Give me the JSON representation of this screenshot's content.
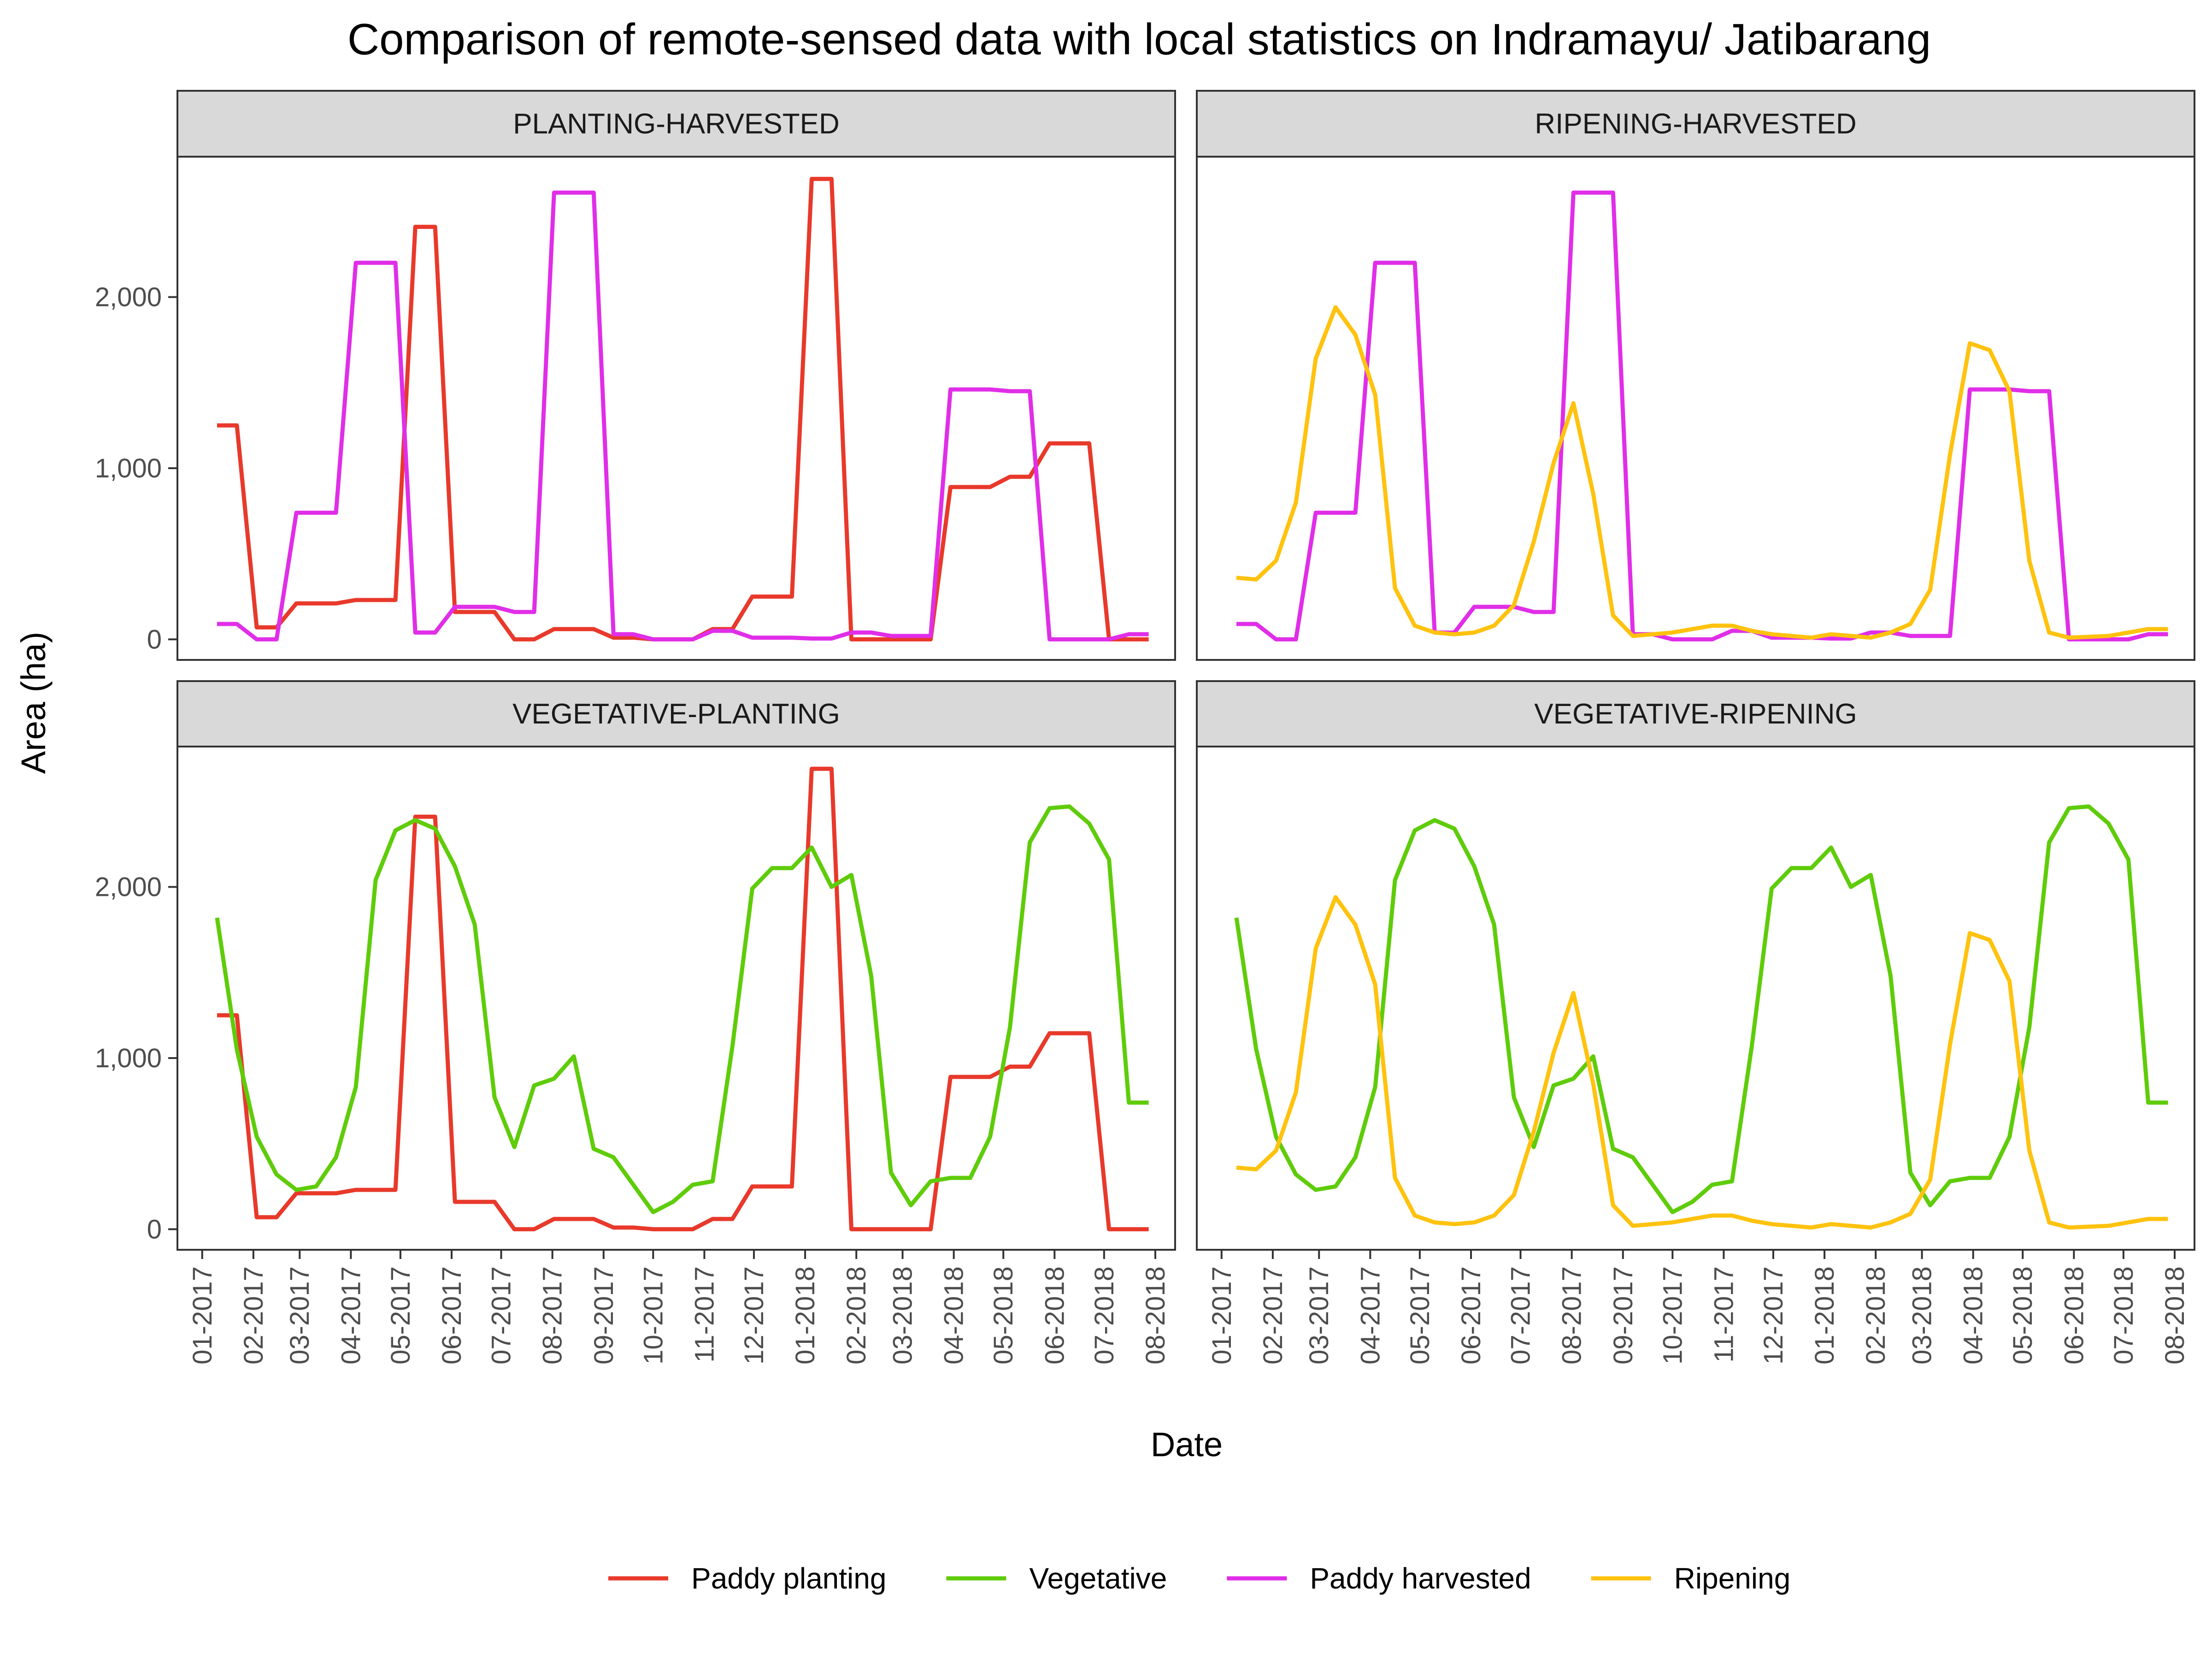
{
  "chart_data": {
    "type": "line",
    "title": "Comparison of remote-sensed data with local statistics on Indramayu/ Jatibarang",
    "xlabel": "Date",
    "ylabel": "Area (ha)",
    "ylim": [
      -120,
      2820
    ],
    "y_ticks": [
      0,
      1000,
      2000
    ],
    "y_tick_labels": [
      "0",
      "1,000",
      "2,000"
    ],
    "x_tick_labels": [
      "01-2017",
      "02-2017",
      "03-2017",
      "04-2017",
      "05-2017",
      "06-2017",
      "07-2017",
      "08-2017",
      "09-2017",
      "10-2017",
      "11-2017",
      "12-2017",
      "01-2018",
      "02-2018",
      "03-2018",
      "04-2018",
      "05-2018",
      "06-2018",
      "07-2018",
      "08-2018"
    ],
    "x_range": [
      "2016-12-17",
      "2018-08-13"
    ],
    "legend_position": "bottom",
    "colors": {
      "Paddy planting": "#e8392b",
      "Vegetative": "#5fcc0a",
      "Paddy harvested": "#e02ee8",
      "Ripening": "#ffc20e"
    },
    "panels": [
      {
        "strip": "PLANTING-HARVESTED",
        "series": [
          "Paddy planting",
          "Paddy harvested"
        ]
      },
      {
        "strip": "RIPENING-HARVESTED",
        "series": [
          "Paddy harvested",
          "Ripening"
        ]
      },
      {
        "strip": "VEGETATIVE-PLANTING",
        "series": [
          "Paddy planting",
          "Vegetative"
        ]
      },
      {
        "strip": "VEGETATIVE-RIPENING",
        "series": [
          "Vegetative",
          "Ripening"
        ]
      }
    ],
    "series": [
      {
        "name": "Paddy planting",
        "dates": [
          "2017-01-10",
          "2017-01-22",
          "2017-02-03",
          "2017-02-15",
          "2017-02-27",
          "2017-03-11",
          "2017-03-23",
          "2017-04-04",
          "2017-04-16",
          "2017-04-28",
          "2017-05-10",
          "2017-05-22",
          "2017-06-03",
          "2017-06-15",
          "2017-06-27",
          "2017-07-09",
          "2017-07-21",
          "2017-08-02",
          "2017-08-14",
          "2017-08-26",
          "2017-09-07",
          "2017-09-19",
          "2017-10-01",
          "2017-10-13",
          "2017-10-25",
          "2017-11-06",
          "2017-11-18",
          "2017-11-30",
          "2017-12-12",
          "2017-12-24",
          "2018-01-05",
          "2018-01-17",
          "2018-01-29",
          "2018-02-10",
          "2018-02-22",
          "2018-03-06",
          "2018-03-18",
          "2018-03-30",
          "2018-04-11",
          "2018-04-23",
          "2018-05-05",
          "2018-05-17",
          "2018-05-29",
          "2018-06-10",
          "2018-06-22",
          "2018-07-04",
          "2018-07-16",
          "2018-07-28"
        ],
        "values": [
          1250,
          1250,
          70,
          70,
          210,
          210,
          210,
          230,
          230,
          230,
          2410,
          2410,
          160,
          160,
          160,
          0,
          0,
          60,
          60,
          60,
          10,
          10,
          0,
          0,
          0,
          60,
          60,
          250,
          250,
          250,
          2690,
          2690,
          0,
          0,
          0,
          0,
          0,
          890,
          890,
          890,
          950,
          950,
          1145,
          1145,
          1145,
          0,
          0,
          0
        ]
      },
      {
        "name": "Paddy harvested",
        "dates": [
          "2017-01-10",
          "2017-01-22",
          "2017-02-03",
          "2017-02-15",
          "2017-02-27",
          "2017-03-11",
          "2017-03-23",
          "2017-04-04",
          "2017-04-16",
          "2017-04-28",
          "2017-05-10",
          "2017-05-22",
          "2017-06-03",
          "2017-06-15",
          "2017-06-27",
          "2017-07-09",
          "2017-07-21",
          "2017-08-02",
          "2017-08-14",
          "2017-08-26",
          "2017-09-07",
          "2017-09-19",
          "2017-10-01",
          "2017-10-13",
          "2017-10-25",
          "2017-11-06",
          "2017-11-18",
          "2017-11-30",
          "2017-12-12",
          "2017-12-24",
          "2018-01-05",
          "2018-01-17",
          "2018-01-29",
          "2018-02-10",
          "2018-02-22",
          "2018-03-06",
          "2018-03-18",
          "2018-03-30",
          "2018-04-11",
          "2018-04-23",
          "2018-05-05",
          "2018-05-17",
          "2018-05-29",
          "2018-06-10",
          "2018-06-22",
          "2018-07-04",
          "2018-07-16",
          "2018-07-28"
        ],
        "values": [
          90,
          90,
          0,
          0,
          740,
          740,
          740,
          2200,
          2200,
          2200,
          40,
          40,
          190,
          190,
          190,
          160,
          160,
          2610,
          2610,
          2610,
          30,
          30,
          0,
          0,
          0,
          50,
          50,
          10,
          10,
          10,
          5,
          5,
          40,
          40,
          20,
          20,
          20,
          1460,
          1460,
          1460,
          1450,
          1450,
          0,
          0,
          0,
          0,
          30,
          30
        ]
      },
      {
        "name": "Vegetative",
        "dates": [
          "2017-01-10",
          "2017-01-22",
          "2017-02-03",
          "2017-02-15",
          "2017-02-27",
          "2017-03-11",
          "2017-03-23",
          "2017-04-04",
          "2017-04-16",
          "2017-04-28",
          "2017-05-10",
          "2017-05-22",
          "2017-06-03",
          "2017-06-15",
          "2017-06-27",
          "2017-07-09",
          "2017-07-21",
          "2017-08-02",
          "2017-08-14",
          "2017-08-26",
          "2017-09-07",
          "2017-09-19",
          "2017-10-01",
          "2017-10-13",
          "2017-10-25",
          "2017-11-06",
          "2017-11-18",
          "2017-11-30",
          "2017-12-12",
          "2017-12-24",
          "2018-01-05",
          "2018-01-17",
          "2018-01-29",
          "2018-02-10",
          "2018-02-22",
          "2018-03-06",
          "2018-03-18",
          "2018-03-30",
          "2018-04-11",
          "2018-04-23",
          "2018-05-05",
          "2018-05-17",
          "2018-05-29",
          "2018-06-10",
          "2018-06-22",
          "2018-07-04",
          "2018-07-16",
          "2018-07-28"
        ],
        "values": [
          1820,
          1050,
          540,
          320,
          230,
          250,
          420,
          830,
          2040,
          2330,
          2390,
          2340,
          2120,
          1780,
          770,
          480,
          840,
          880,
          1010,
          470,
          420,
          260,
          100,
          160,
          260,
          280,
          1070,
          1990,
          2110,
          2110,
          2230,
          2000,
          2070,
          1480,
          330,
          140,
          280,
          300,
          300,
          540,
          1180,
          2260,
          2460,
          2470,
          2370,
          2160,
          740,
          740
        ]
      },
      {
        "name": "Ripening",
        "dates": [
          "2017-01-10",
          "2017-01-22",
          "2017-02-03",
          "2017-02-15",
          "2017-02-27",
          "2017-03-11",
          "2017-03-23",
          "2017-04-04",
          "2017-04-16",
          "2017-04-28",
          "2017-05-10",
          "2017-05-22",
          "2017-06-03",
          "2017-06-15",
          "2017-06-27",
          "2017-07-09",
          "2017-07-21",
          "2017-08-02",
          "2017-08-14",
          "2017-08-26",
          "2017-09-07",
          "2017-09-19",
          "2017-10-01",
          "2017-10-13",
          "2017-10-25",
          "2017-11-06",
          "2017-11-18",
          "2017-11-30",
          "2017-12-12",
          "2017-12-24",
          "2018-01-05",
          "2018-01-17",
          "2018-01-29",
          "2018-02-10",
          "2018-02-22",
          "2018-03-06",
          "2018-03-18",
          "2018-03-30",
          "2018-04-11",
          "2018-04-23",
          "2018-05-05",
          "2018-05-17",
          "2018-05-29",
          "2018-06-10",
          "2018-06-22",
          "2018-07-04",
          "2018-07-16",
          "2018-07-28"
        ],
        "values": [
          360,
          350,
          460,
          800,
          1640,
          1940,
          1780,
          1430,
          300,
          80,
          40,
          30,
          40,
          80,
          200,
          570,
          1030,
          1380,
          850,
          140,
          20,
          30,
          40,
          60,
          80,
          80,
          50,
          30,
          20,
          10,
          30,
          20,
          10,
          40,
          90,
          290,
          1080,
          1730,
          1690,
          1450,
          460,
          40,
          10,
          15,
          20,
          40,
          60,
          60
        ]
      }
    ]
  }
}
